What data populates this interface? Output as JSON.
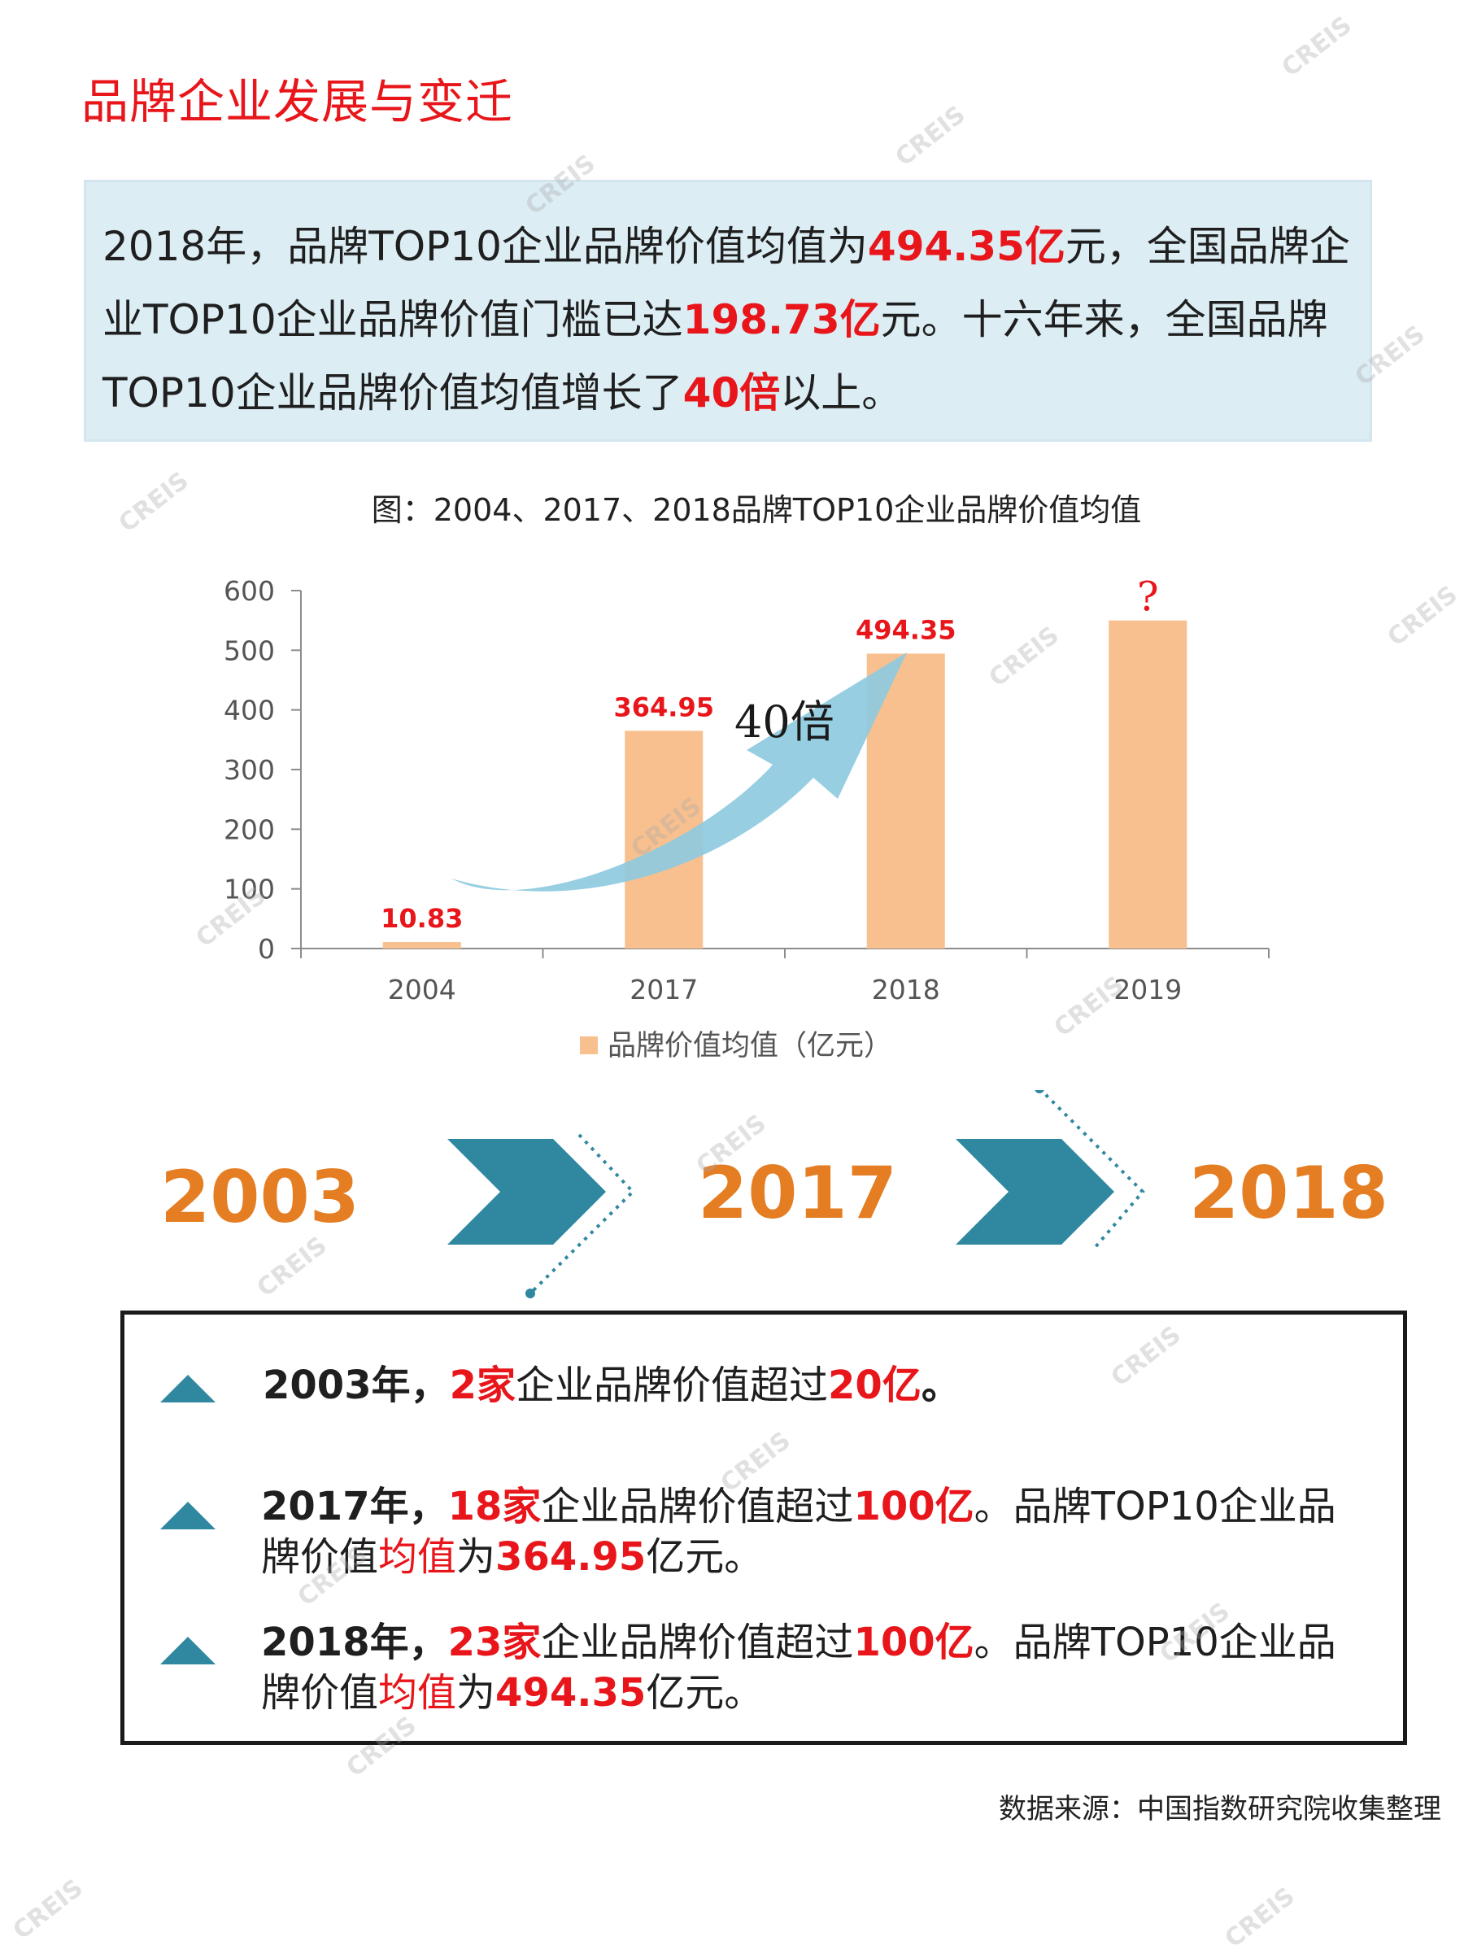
{
  "page": {
    "title": "品牌企业发展与变迁",
    "source": "数据来源：中国指数研究院收集整理",
    "watermark": "CREIS"
  },
  "summary": {
    "parts": [
      {
        "t": "2018年，品牌TOP10企业品牌价值均值为",
        "hl": false
      },
      {
        "t": "494.35亿",
        "hl": true
      },
      {
        "t": "元，全国品牌企业TOP10企业品牌价值门槛已达",
        "hl": false
      },
      {
        "t": "198.73亿",
        "hl": true
      },
      {
        "t": "元。十六年来，全国品牌TOP10企业品牌价值均值增长了",
        "hl": false
      },
      {
        "t": "40倍",
        "hl": true
      },
      {
        "t": "以上。",
        "hl": false
      }
    ]
  },
  "chart_caption": "图：2004、2017、2018品牌TOP10企业品牌价值均值",
  "chart_data": {
    "type": "bar",
    "categories": [
      "2004",
      "2017",
      "2018",
      "2019"
    ],
    "series": [
      {
        "name": "品牌价值均值（亿元）",
        "values": [
          10.83,
          364.95,
          494.35,
          550
        ]
      }
    ],
    "data_labels": [
      "10.83",
      "364.95",
      "494.35",
      "?"
    ],
    "yticks": [
      0,
      100,
      200,
      300,
      400,
      500,
      600
    ],
    "ylim": [
      0,
      600
    ],
    "annotation": "40倍",
    "legend_position": "bottom",
    "bar_color": "#f8c08f",
    "label_color": "#e8161b",
    "arrow_color": "#8ecae0"
  },
  "timeline": {
    "years": [
      "2003",
      "2017",
      "2018"
    ],
    "chevron_color": "#2f87a0"
  },
  "facts": [
    {
      "parts": [
        {
          "t": "2003年，",
          "s": "bold"
        },
        {
          "t": "2家",
          "s": "red"
        },
        {
          "t": "企业品牌价值超过",
          "s": ""
        },
        {
          "t": "20亿",
          "s": "red"
        },
        {
          "t": "。",
          "s": "bold"
        }
      ]
    },
    {
      "parts": [
        {
          "t": "2017年，",
          "s": "bold"
        },
        {
          "t": "18家",
          "s": "red"
        },
        {
          "t": "企业品牌价值超过",
          "s": ""
        },
        {
          "t": "100亿",
          "s": "red"
        },
        {
          "t": "。品牌TOP10企业品牌价值",
          "s": ""
        },
        {
          "t": "均值",
          "s": "red-plain"
        },
        {
          "t": "为",
          "s": ""
        },
        {
          "t": "364.95",
          "s": "red"
        },
        {
          "t": "亿元。",
          "s": ""
        }
      ]
    },
    {
      "parts": [
        {
          "t": "2018年，",
          "s": "bold"
        },
        {
          "t": "23家",
          "s": "red"
        },
        {
          "t": "企业品牌价值超过",
          "s": ""
        },
        {
          "t": "100亿",
          "s": "red"
        },
        {
          "t": "。品牌TOP10企业品牌价值",
          "s": ""
        },
        {
          "t": "均值",
          "s": "red-plain"
        },
        {
          "t": "为",
          "s": ""
        },
        {
          "t": "494.35",
          "s": "red"
        },
        {
          "t": "亿元。",
          "s": ""
        }
      ]
    }
  ]
}
